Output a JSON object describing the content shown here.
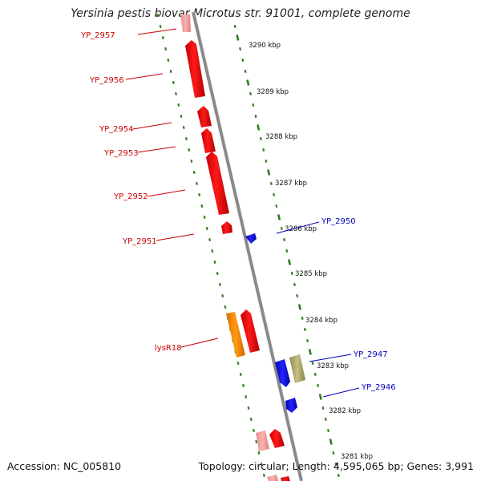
{
  "title": "Yersinia pestis biovar Microtus str. 91001, complete genome",
  "footer": {
    "accession": "Accession: NC_005810",
    "topology": "Topology: circular; Length: 4,595,065 bp; Genes: 3,991"
  },
  "colors": {
    "backbone": "#8a8a8a",
    "tick_dash": "#2e7d1e",
    "forward_gene": "#ff0000",
    "forward_gene_light": "#f4a0a0",
    "reverse_gene": "#1010ee",
    "operon_gene": "#ff8800",
    "other_gene": "#aaa765",
    "forward_label": "#cc0000",
    "reverse_label": "#0000bb"
  },
  "scale_labels": [
    "3290 kbp",
    "3289 kbp",
    "3288 kbp",
    "3287 kbp",
    "3286 kbp",
    "3285 kbp",
    "3284 kbp",
    "3283 kbp",
    "3282 kbp",
    "3281 kbp"
  ],
  "gene_labels_left": [
    "YP_2957",
    "YP_2956",
    "YP_2954",
    "YP_2953",
    "YP_2952",
    "YP_2951",
    "lysR18"
  ],
  "gene_labels_right": [
    "YP_2950",
    "YP_2947",
    "YP_2946"
  ]
}
